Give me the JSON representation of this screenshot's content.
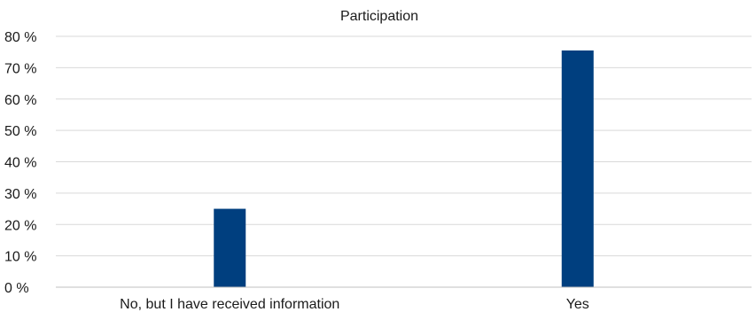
{
  "chart_data": {
    "type": "bar",
    "title": "Participation",
    "categories": [
      "No, but I have received information",
      "Yes"
    ],
    "values": [
      25,
      75.5
    ],
    "ylim": [
      0,
      80
    ],
    "yticks": [
      0,
      10,
      20,
      30,
      40,
      50,
      60,
      70,
      80
    ],
    "ytick_labels": [
      "0 %",
      "10 %",
      "20 %",
      "30 %",
      "40 %",
      "50 %",
      "60 %",
      "70 %",
      "80 %"
    ],
    "grid": true,
    "legend": "none",
    "bar_color": "#003f7f"
  }
}
